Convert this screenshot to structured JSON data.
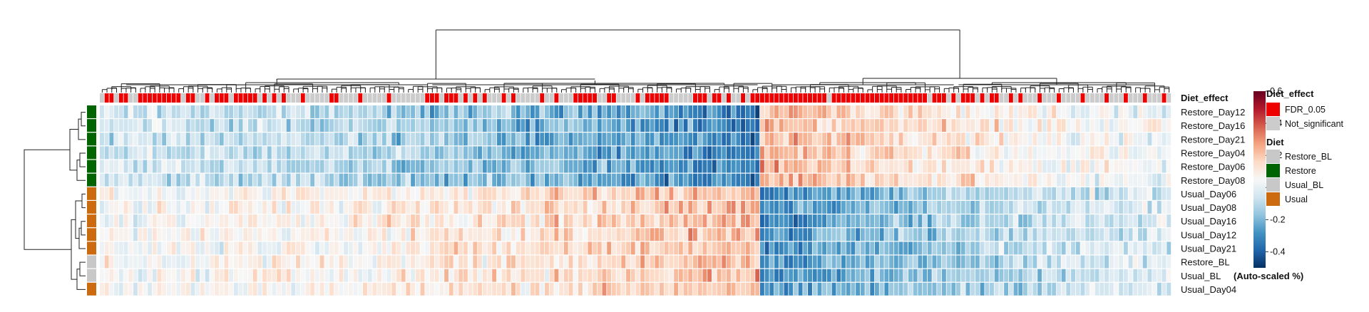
{
  "chart_data": {
    "type": "heatmap",
    "n_columns": 224,
    "column_annotation": {
      "title": "Diet_effect",
      "significant_columns": [
        1,
        2,
        4,
        5,
        8,
        9,
        10,
        11,
        12,
        13,
        14,
        15,
        16,
        18,
        19,
        22,
        24,
        25,
        26,
        28,
        29,
        30,
        31,
        32,
        34,
        36,
        38,
        42,
        48,
        49,
        54,
        60,
        68,
        69,
        70,
        72,
        73,
        74,
        76,
        78,
        80,
        84,
        86,
        92,
        95,
        99,
        100,
        101,
        102,
        103,
        106,
        107,
        112,
        114,
        115,
        116,
        117,
        118,
        124,
        125,
        126,
        128,
        129,
        131,
        134,
        136,
        137,
        138,
        139,
        140,
        141,
        142,
        143,
        144,
        145,
        146,
        147,
        148,
        149,
        150,
        151,
        153,
        154,
        155,
        156,
        157,
        158,
        159,
        160,
        161,
        162,
        163,
        164,
        165,
        166,
        167,
        168,
        169,
        170,
        171,
        172,
        174,
        175,
        176,
        178,
        180,
        181,
        182,
        184,
        186,
        187,
        190,
        192,
        196,
        200,
        205,
        210,
        214,
        218,
        222
      ]
    },
    "rows": [
      {
        "label": "Restore_Day12",
        "diet": "Restore"
      },
      {
        "label": "Restore_Day16",
        "diet": "Restore"
      },
      {
        "label": "Restore_Day21",
        "diet": "Restore"
      },
      {
        "label": "Restore_Day04",
        "diet": "Restore"
      },
      {
        "label": "Restore_Day06",
        "diet": "Restore"
      },
      {
        "label": "Restore_Day08",
        "diet": "Restore"
      },
      {
        "label": "Usual_Day06",
        "diet": "Usual"
      },
      {
        "label": "Usual_Day08",
        "diet": "Usual"
      },
      {
        "label": "Usual_Day16",
        "diet": "Usual"
      },
      {
        "label": "Usual_Day12",
        "diet": "Usual"
      },
      {
        "label": "Usual_Day21",
        "diet": "Usual"
      },
      {
        "label": "Restore_BL",
        "diet": "Restore_BL"
      },
      {
        "label": "Usual_BL",
        "diet": "Usual_BL"
      },
      {
        "label": "Usual_Day04",
        "diet": "Usual"
      }
    ],
    "value_range": [
      -0.5,
      0.6
    ],
    "colorbar": {
      "ticks": [
        0.6,
        0.4,
        0.2,
        0,
        -0.2,
        -0.4
      ],
      "tick_labels": [
        "0.6",
        "0.4",
        "0.2",
        "0",
        "-0.2",
        "-0.4"
      ],
      "title": "(Auto-scaled %)",
      "stops": [
        "#053061",
        "#2166ac",
        "#4393c3",
        "#92c5de",
        "#d1e5f0",
        "#f7f7f7",
        "#fddbc7",
        "#f4a582",
        "#d6604d",
        "#b2182b",
        "#67001f"
      ]
    },
    "legend": {
      "diet_effect_title": "Diet_effect",
      "diet_effect_items": [
        {
          "label": "FDR_0.05",
          "color": "#ee0000"
        },
        {
          "label": "Not_significant",
          "color": "#cccccc"
        }
      ],
      "diet_title": "Diet",
      "diet_items": [
        {
          "label": "Restore_BL",
          "color": "#c8c8c8"
        },
        {
          "label": "Restore",
          "color": "#006400"
        },
        {
          "label": "Usual_BL",
          "color": "#c8c8c8"
        },
        {
          "label": "Usual",
          "color": "#cc6a10"
        }
      ]
    },
    "colors": {
      "significant": "#ee0000",
      "not_significant": "#cccccc",
      "Restore": "#006400",
      "Usual": "#cc6a10",
      "Restore_BL": "#c8c8c8",
      "Usual_BL": "#c8c8c8"
    }
  }
}
